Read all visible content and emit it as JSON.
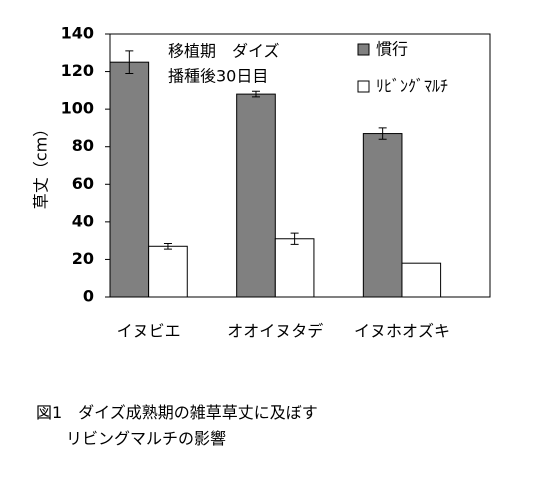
{
  "chart_data": {
    "type": "bar",
    "annotation": [
      "移植期　ダイズ",
      "播種後30日目"
    ],
    "ylabel": "草丈（cm）",
    "categories": [
      "イヌビエ",
      "オオイヌタデ",
      "イヌホオズキ"
    ],
    "series": [
      {
        "name": "慣行",
        "color": "#808080",
        "values": [
          125,
          108,
          87
        ],
        "errors": [
          6,
          1.5,
          3
        ]
      },
      {
        "name": "ﾘﾋﾞﾝｸﾞﾏﾙﾁ",
        "color": "#ffffff",
        "values": [
          27,
          31,
          18
        ],
        "errors": [
          1.5,
          3,
          null
        ]
      }
    ],
    "ylim": [
      0,
      140
    ],
    "yticks": [
      0,
      20,
      40,
      60,
      80,
      100,
      120,
      140
    ],
    "grid": false,
    "legend": "upper right"
  },
  "caption": {
    "line1": "図1　ダイズ成熟期の雑草草丈に及ぼす",
    "line2": "リビングマルチの影響"
  }
}
